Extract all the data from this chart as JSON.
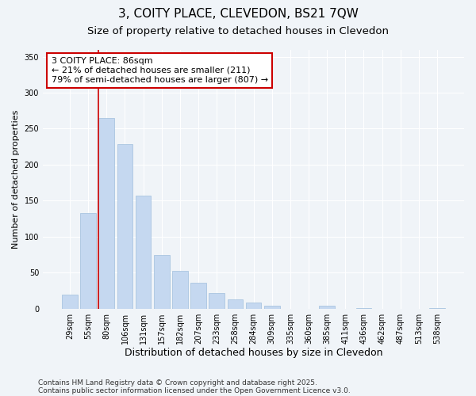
{
  "title_line1": "3, COITY PLACE, CLEVEDON, BS21 7QW",
  "title_line2": "Size of property relative to detached houses in Clevedon",
  "xlabel": "Distribution of detached houses by size in Clevedon",
  "ylabel": "Number of detached properties",
  "categories": [
    "29sqm",
    "55sqm",
    "80sqm",
    "106sqm",
    "131sqm",
    "157sqm",
    "182sqm",
    "207sqm",
    "233sqm",
    "258sqm",
    "284sqm",
    "309sqm",
    "335sqm",
    "360sqm",
    "385sqm",
    "411sqm",
    "436sqm",
    "462sqm",
    "487sqm",
    "513sqm",
    "538sqm"
  ],
  "values": [
    20,
    133,
    265,
    228,
    157,
    75,
    53,
    36,
    22,
    13,
    9,
    4,
    0,
    0,
    4,
    0,
    1,
    0,
    0,
    0,
    1
  ],
  "bar_color": "#c5d8f0",
  "bar_edge_color": "#a0bfdd",
  "vline_index": 2,
  "vline_color": "#cc0000",
  "annotation_title": "3 COITY PLACE: 86sqm",
  "annotation_line2": "← 21% of detached houses are smaller (211)",
  "annotation_line3": "79% of semi-detached houses are larger (807) →",
  "annotation_box_edgecolor": "#cc0000",
  "ylim": [
    0,
    360
  ],
  "yticks": [
    0,
    50,
    100,
    150,
    200,
    250,
    300,
    350
  ],
  "footnote_line1": "Contains HM Land Registry data © Crown copyright and database right 2025.",
  "footnote_line2": "Contains public sector information licensed under the Open Government Licence v3.0.",
  "bg_color": "#f0f4f8",
  "grid_color": "#ffffff",
  "title_fontsize": 11,
  "subtitle_fontsize": 9.5,
  "ylabel_fontsize": 8,
  "xlabel_fontsize": 9,
  "tick_fontsize": 7,
  "annot_fontsize": 8,
  "footnote_fontsize": 6.5
}
